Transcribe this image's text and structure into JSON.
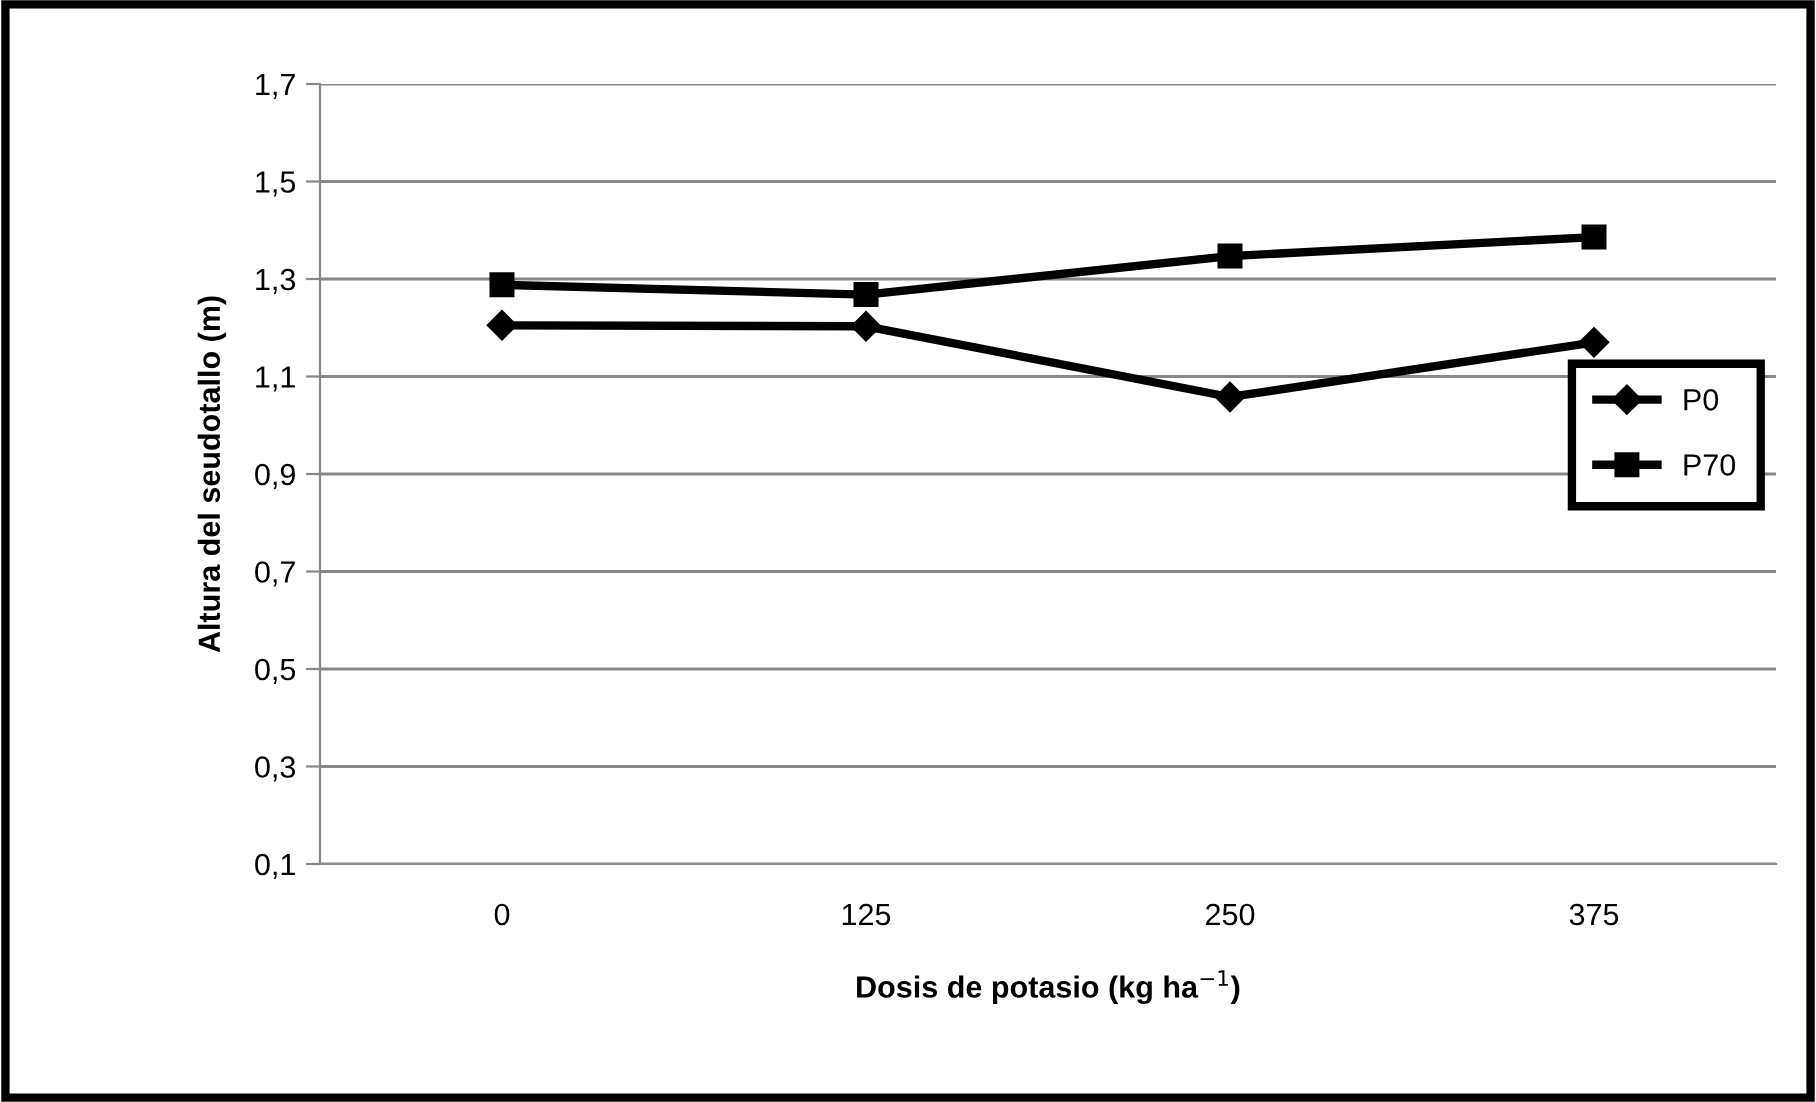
{
  "chart_data": {
    "type": "line",
    "xlabel": "Dosis de potasio (kg ha$^{−1}$)",
    "ylabel": "Altura del seudotallo (m)",
    "categories": [
      "0",
      "125",
      "250",
      "375"
    ],
    "series": [
      {
        "name": "P0",
        "color": "#000000",
        "marker": "diamond",
        "values": [
          1.205,
          1.203,
          1.058,
          1.17
        ]
      },
      {
        "name": "P70",
        "color": "#000000",
        "marker": "square",
        "values": [
          1.288,
          1.268,
          1.347,
          1.386
        ]
      }
    ],
    "ylim": [
      0.1,
      1.7
    ],
    "yticks": [
      {
        "value": 0.1,
        "label": "0,1"
      },
      {
        "value": 0.3,
        "label": "0,3"
      },
      {
        "value": 0.5,
        "label": "0,5"
      },
      {
        "value": 0.7,
        "label": "0,7"
      },
      {
        "value": 0.9,
        "label": "0,9"
      },
      {
        "value": 1.1,
        "label": "1,1"
      },
      {
        "value": 1.3,
        "label": "1,3"
      },
      {
        "value": 1.5,
        "label": "1,5"
      },
      {
        "value": 1.7,
        "label": "1,7"
      }
    ],
    "grid": "y",
    "legend": "right",
    "line_style": "solid"
  }
}
